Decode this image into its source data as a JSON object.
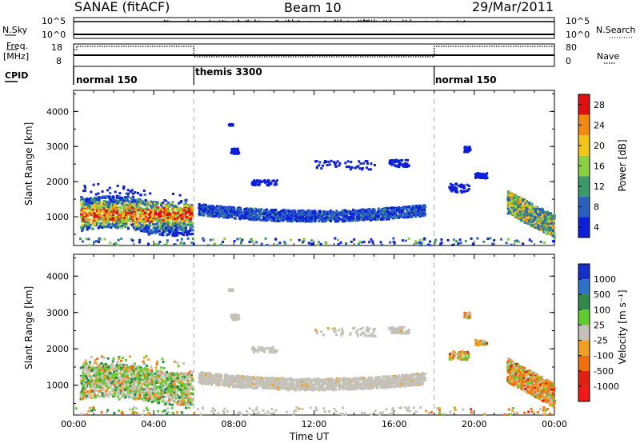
{
  "header": {
    "title": "SANAE (fitACF)",
    "beam": "Beam 10",
    "date": "29/Mar/2011"
  },
  "summary_panel": {
    "nsky_label": "N.Sky",
    "nsky_ticks": [
      "10^5",
      "10^0"
    ],
    "nsearch_label": "N.Search",
    "nsearch_ticks": [
      "10^5",
      "10^0"
    ],
    "freq_label": "Freq.",
    "freq_unit": "[MHz]",
    "freq_ticks": [
      "18",
      "8"
    ],
    "nave_label": "Nave",
    "nave_ticks": [
      "80",
      "0"
    ],
    "cpid_label": "CPID",
    "cpid_segments": [
      {
        "name": "normal 150",
        "start_hour": 0
      },
      {
        "name": "themis 3300",
        "start_hour": 6
      },
      {
        "name": "normal 150",
        "start_hour": 18
      }
    ]
  },
  "chart_data": [
    {
      "type": "heatmap",
      "ylabel": "Slant Range [km]",
      "y_ticks": [
        "1000",
        "2000",
        "3000",
        "4000"
      ],
      "y_tick_values": [
        1000,
        2000,
        3000,
        4000
      ],
      "ylim": [
        180,
        4600
      ],
      "xlim": [
        0,
        24
      ],
      "colorbar": {
        "label": "Power [dB]",
        "labels": [
          "4",
          "8",
          "12",
          "16",
          "20",
          "24",
          "28"
        ],
        "colors": [
          "#0d1fd8",
          "#2860c0",
          "#3a9a6a",
          "#8ad040",
          "#f4c418",
          "#f28a10",
          "#e01010"
        ],
        "range": [
          0,
          32
        ]
      },
      "bands": [
        {
          "x0": 0.4,
          "x1": 5.9,
          "y0": 650,
          "y1": 1750,
          "level": "mixed"
        },
        {
          "x0": 6.2,
          "x1": 17.5,
          "y0": 850,
          "y1": 1450,
          "level": "weak"
        },
        {
          "x0": 21.6,
          "x1": 23.9,
          "y0": 650,
          "y1": 1900,
          "level": "mixed"
        }
      ]
    },
    {
      "type": "heatmap",
      "ylabel": "Slant Range [km]",
      "y_ticks": [
        "1000",
        "2000",
        "3000",
        "4000"
      ],
      "y_tick_values": [
        1000,
        2000,
        3000,
        4000
      ],
      "ylim": [
        180,
        4600
      ],
      "xlim": [
        0,
        24
      ],
      "xlabel": "Time UT",
      "x_ticks": [
        "00:00",
        "04:00",
        "08:00",
        "12:00",
        "16:00",
        "20:00",
        "00:00"
      ],
      "x_tick_values": [
        0,
        4,
        8,
        12,
        16,
        20,
        24
      ],
      "colorbar": {
        "label": "Velocity [m s⁻¹]",
        "labels": [
          "1000",
          "500",
          "100",
          "25",
          "-25",
          "-100",
          "-500",
          "-1000"
        ],
        "colors": [
          "#1530c8",
          "#2f70c8",
          "#2e8a4a",
          "#60cc30",
          "#c4c2b8",
          "#f2a020",
          "#f07010",
          "#e02010",
          "#f01818"
        ],
        "range": [
          -1200,
          1200
        ]
      },
      "bands": [
        {
          "x0": 0.4,
          "x1": 5.9,
          "y0": 650,
          "y1": 1750,
          "level": "mixed"
        },
        {
          "x0": 6.2,
          "x1": 17.5,
          "y0": 850,
          "y1": 1450,
          "level": "grey"
        },
        {
          "x0": 21.6,
          "x1": 23.9,
          "y0": 650,
          "y1": 1900,
          "level": "mixed"
        }
      ]
    }
  ]
}
